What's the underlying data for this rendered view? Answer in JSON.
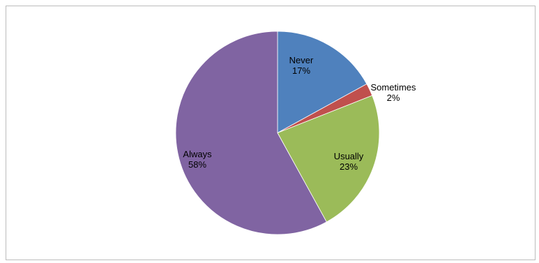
{
  "chart_data": {
    "type": "pie",
    "title": "",
    "legend": "none",
    "slices": [
      {
        "label": "Never",
        "value": 17,
        "value_label": "17%",
        "color": "#4F81BD"
      },
      {
        "label": "Sometimes",
        "value": 2,
        "value_label": "2%",
        "color": "#C0504D"
      },
      {
        "label": "Usually",
        "value": 23,
        "value_label": "23%",
        "color": "#9BBB59"
      },
      {
        "label": "Always",
        "value": 58,
        "value_label": "58%",
        "color": "#8064A2"
      }
    ]
  }
}
